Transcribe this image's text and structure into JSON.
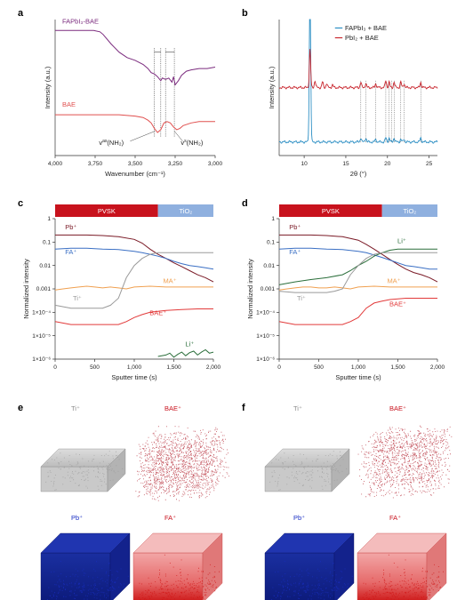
{
  "panel_letters": [
    "a",
    "b",
    "c",
    "d",
    "e",
    "f"
  ],
  "chart_data": [
    {
      "panel": "a",
      "type": "line",
      "xlabel": "Wavenumber (cm⁻¹)",
      "ylabel": "Intensity (a.u.)",
      "xlim": [
        4000,
        3000
      ],
      "xticks": [
        "4,000",
        "3,750",
        "3,500",
        "3,250",
        "3,000"
      ],
      "xtick_values": [
        4000,
        3750,
        3500,
        3250,
        3000
      ],
      "series": [
        {
          "name": "FAPbI₃-BAE",
          "color": "#7b2b7e",
          "x": [
            4000,
            3950,
            3900,
            3850,
            3800,
            3760,
            3720,
            3700,
            3650,
            3600,
            3550,
            3500,
            3450,
            3420,
            3400,
            3380,
            3360,
            3340,
            3330,
            3310,
            3290,
            3270,
            3260,
            3250,
            3230,
            3210,
            3180,
            3150,
            3100,
            3050,
            3000
          ],
          "y": [
            0.92,
            0.92,
            0.92,
            0.92,
            0.92,
            0.92,
            0.91,
            0.89,
            0.82,
            0.76,
            0.72,
            0.7,
            0.67,
            0.64,
            0.61,
            0.6,
            0.58,
            0.55,
            0.57,
            0.56,
            0.57,
            0.54,
            0.58,
            0.52,
            0.55,
            0.59,
            0.62,
            0.63,
            0.64,
            0.64,
            0.65
          ]
        },
        {
          "name": "BAE",
          "color": "#e0504f",
          "x": [
            4000,
            3900,
            3800,
            3700,
            3600,
            3500,
            3450,
            3420,
            3400,
            3380,
            3360,
            3340,
            3320,
            3300,
            3280,
            3260,
            3240,
            3220,
            3200,
            3150,
            3100,
            3050,
            3000
          ],
          "y": [
            0.3,
            0.3,
            0.3,
            0.3,
            0.3,
            0.29,
            0.28,
            0.26,
            0.24,
            0.2,
            0.17,
            0.19,
            0.24,
            0.25,
            0.24,
            0.21,
            0.19,
            0.2,
            0.22,
            0.24,
            0.25,
            0.25,
            0.25
          ]
        }
      ],
      "annotations": [
        {
          "text": "v",
          "sup": "as",
          "rest": "(NH₂)",
          "x": 3420
        },
        {
          "text": "v",
          "sup": "s",
          "rest": "(NH₂)",
          "x": 3270
        }
      ],
      "dotted_lines": [
        3380,
        3340,
        3310,
        3255
      ]
    },
    {
      "panel": "b",
      "type": "line",
      "xlabel": "2θ (°)",
      "ylabel": "Intensity (a.u.)",
      "xlim": [
        7,
        26
      ],
      "xticks": [
        "10",
        "15",
        "20",
        "25"
      ],
      "xtick_values": [
        10,
        15,
        20,
        25
      ],
      "series": [
        {
          "name": "FAPbI₃ + BAE",
          "color": "#2d8fc4",
          "baseline": 0.1,
          "peaks": [
            [
              10.7,
              1.2
            ],
            [
              16.8,
              0.03
            ],
            [
              17.4,
              0.03
            ],
            [
              18.6,
              0.02
            ],
            [
              19.8,
              0.03
            ],
            [
              20.2,
              0.03
            ],
            [
              20.8,
              0.03
            ],
            [
              21.6,
              0.02
            ],
            [
              22.0,
              0.02
            ],
            [
              24.0,
              0.03
            ]
          ]
        },
        {
          "name": "PbI₂ + BAE",
          "color": "#c8262e",
          "baseline": 0.5,
          "peaks": [
            [
              10.7,
              0.28
            ],
            [
              11.3,
              0.05
            ],
            [
              12.2,
              0.04
            ],
            [
              12.7,
              0.03
            ],
            [
              13.4,
              0.02
            ],
            [
              16.8,
              0.04
            ],
            [
              17.4,
              0.03
            ],
            [
              18.6,
              0.03
            ],
            [
              19.8,
              0.05
            ],
            [
              20.2,
              0.04
            ],
            [
              20.8,
              0.04
            ],
            [
              21.6,
              0.04
            ],
            [
              22.0,
              0.03
            ],
            [
              24.0,
              0.04
            ]
          ]
        }
      ],
      "dotted_lines": [
        16.8,
        17.4,
        18.6,
        19.8,
        20.2,
        20.5,
        20.8,
        21.6,
        22.0,
        24.0
      ]
    },
    {
      "panel": "c",
      "type": "line",
      "xlabel": "Sputter time (s)",
      "ylabel": "Normalized intensity",
      "yscale": "log",
      "ylim": [
        1e-06,
        1
      ],
      "xlim": [
        0,
        2000
      ],
      "xticks": [
        "0",
        "500",
        "1,000",
        "1,500",
        "2,000"
      ],
      "xtick_values": [
        0,
        500,
        1000,
        1500,
        2000
      ],
      "yticks": [
        "1",
        "0.1",
        "0.01",
        "0.001",
        "1×10⁻⁴",
        "1×10⁻⁵",
        "1×10⁻⁶"
      ],
      "bar": [
        {
          "label": "PVSK",
          "from": 0,
          "to": 1300,
          "color": "#c8121d"
        },
        {
          "label": "TiO₂",
          "from": 1300,
          "to": 2000,
          "color": "#8fb0df"
        }
      ],
      "series": [
        {
          "name": "Pb⁺",
          "color": "#7a1a26",
          "x": [
            0,
            200,
            400,
            600,
            800,
            1000,
            1100,
            1200,
            1300,
            1400,
            1500,
            1600,
            1700,
            1800,
            1900,
            2000
          ],
          "y": [
            0.2,
            0.2,
            0.2,
            0.19,
            0.17,
            0.13,
            0.09,
            0.05,
            0.03,
            0.02,
            0.013,
            0.009,
            0.006,
            0.004,
            0.003,
            0.002
          ]
        },
        {
          "name": "FA⁺",
          "color": "#3a6fc4",
          "x": [
            0,
            200,
            400,
            600,
            800,
            1000,
            1100,
            1200,
            1300,
            1400,
            1500,
            1600,
            1700,
            1800,
            1900,
            2000
          ],
          "y": [
            0.05,
            0.055,
            0.055,
            0.05,
            0.048,
            0.04,
            0.035,
            0.03,
            0.025,
            0.02,
            0.015,
            0.012,
            0.01,
            0.009,
            0.008,
            0.007
          ]
        },
        {
          "name": "MA⁺",
          "color": "#f0a050",
          "x": [
            0,
            100,
            200,
            300,
            400,
            500,
            600,
            700,
            800,
            900,
            1000,
            1200,
            1400,
            1600,
            1800,
            2000
          ],
          "y": [
            0.0009,
            0.001,
            0.0011,
            0.0012,
            0.0013,
            0.0012,
            0.0011,
            0.0012,
            0.0011,
            0.001,
            0.0012,
            0.0013,
            0.0012,
            0.0012,
            0.0012,
            0.0012
          ]
        },
        {
          "name": "Ti⁺",
          "color": "#9a9a9a",
          "x": [
            0,
            200,
            400,
            600,
            700,
            800,
            900,
            1000,
            1100,
            1200,
            1300,
            1400,
            1600,
            1800,
            2000
          ],
          "y": [
            0.0002,
            0.00015,
            0.00015,
            0.00015,
            0.0002,
            0.0004,
            0.003,
            0.01,
            0.02,
            0.03,
            0.035,
            0.035,
            0.035,
            0.035,
            0.035
          ]
        },
        {
          "name": "BAE⁺",
          "color": "#e23a3a",
          "x": [
            0,
            200,
            400,
            600,
            800,
            900,
            1000,
            1100,
            1200,
            1300,
            1400,
            1600,
            1800,
            2000
          ],
          "y": [
            4e-05,
            3e-05,
            3e-05,
            3e-05,
            3e-05,
            4e-05,
            6e-05,
            8e-05,
            0.0001,
            0.00011,
            0.00012,
            0.00013,
            0.00014,
            0.00014
          ]
        },
        {
          "name": "Li⁺",
          "color": "#2a6e3a",
          "x": [
            1300,
            1400,
            1450,
            1500,
            1550,
            1600,
            1650,
            1700,
            1750,
            1800,
            1850,
            1900,
            1950,
            2000
          ],
          "y": [
            1.3e-06,
            1.5e-06,
            1.8e-06,
            1.2e-06,
            1.6e-06,
            2e-06,
            1.4e-06,
            1.9e-06,
            2.2e-06,
            1.5e-06,
            2e-06,
            2.5e-06,
            1.8e-06,
            2e-06
          ]
        }
      ]
    },
    {
      "panel": "d",
      "type": "line",
      "xlabel": "Sputter time (s)",
      "ylabel": "Normalized intensity",
      "yscale": "log",
      "ylim": [
        1e-06,
        1
      ],
      "xlim": [
        0,
        2000
      ],
      "xticks": [
        "0",
        "500",
        "1,000",
        "1,500",
        "2,000"
      ],
      "xtick_values": [
        0,
        500,
        1000,
        1500,
        2000
      ],
      "yticks": [
        "1",
        "0.1",
        "0.01",
        "0.001",
        "1×10⁻⁴",
        "1×10⁻⁵",
        "1×10⁻⁶"
      ],
      "bar": [
        {
          "label": "PVSK",
          "from": 0,
          "to": 1300,
          "color": "#c8121d"
        },
        {
          "label": "TiO₂",
          "from": 1300,
          "to": 2000,
          "color": "#8fb0df"
        }
      ],
      "series": [
        {
          "name": "Pb⁺",
          "color": "#7a1a26",
          "x": [
            0,
            200,
            400,
            600,
            800,
            1000,
            1100,
            1200,
            1300,
            1400,
            1500,
            1600,
            1700,
            1800,
            1900,
            2000
          ],
          "y": [
            0.2,
            0.2,
            0.2,
            0.19,
            0.17,
            0.12,
            0.08,
            0.05,
            0.03,
            0.018,
            0.011,
            0.007,
            0.005,
            0.004,
            0.003,
            0.002
          ]
        },
        {
          "name": "FA⁺",
          "color": "#3a6fc4",
          "x": [
            0,
            200,
            400,
            600,
            800,
            1000,
            1100,
            1200,
            1300,
            1400,
            1500,
            1600,
            1700,
            1800,
            1900,
            2000
          ],
          "y": [
            0.05,
            0.055,
            0.055,
            0.05,
            0.048,
            0.04,
            0.035,
            0.028,
            0.022,
            0.017,
            0.013,
            0.01,
            0.009,
            0.008,
            0.007,
            0.007
          ]
        },
        {
          "name": "Li⁺",
          "color": "#2a6e3a",
          "x": [
            0,
            200,
            400,
            600,
            800,
            900,
            1000,
            1100,
            1200,
            1300,
            1400,
            1500,
            1600,
            1800,
            2000
          ],
          "y": [
            0.0015,
            0.002,
            0.0025,
            0.003,
            0.004,
            0.006,
            0.01,
            0.015,
            0.025,
            0.035,
            0.045,
            0.05,
            0.05,
            0.05,
            0.05
          ]
        },
        {
          "name": "MA⁺",
          "color": "#f0a050",
          "x": [
            0,
            100,
            200,
            300,
            400,
            500,
            600,
            700,
            800,
            900,
            1000,
            1200,
            1400,
            1600,
            1800,
            2000
          ],
          "y": [
            0.0009,
            0.001,
            0.0011,
            0.0012,
            0.0012,
            0.0011,
            0.0011,
            0.0012,
            0.0011,
            0.001,
            0.0012,
            0.0013,
            0.0012,
            0.0012,
            0.0012,
            0.0012
          ]
        },
        {
          "name": "Ti⁺",
          "color": "#9a9a9a",
          "x": [
            0,
            200,
            400,
            600,
            700,
            800,
            900,
            1000,
            1100,
            1200,
            1300,
            1400,
            1600,
            1800,
            2000
          ],
          "y": [
            0.0008,
            0.0007,
            0.0007,
            0.0007,
            0.0008,
            0.001,
            0.004,
            0.01,
            0.02,
            0.03,
            0.035,
            0.035,
            0.035,
            0.035,
            0.035
          ]
        },
        {
          "name": "BAE⁺",
          "color": "#e23a3a",
          "x": [
            0,
            200,
            400,
            600,
            800,
            900,
            1000,
            1100,
            1200,
            1300,
            1400,
            1600,
            1800,
            2000
          ],
          "y": [
            4e-05,
            3e-05,
            3e-05,
            3e-05,
            3e-05,
            4e-05,
            6e-05,
            0.00015,
            0.00025,
            0.0003,
            0.00035,
            0.0004,
            0.0004,
            0.0004
          ]
        }
      ]
    }
  ],
  "panel_e": {
    "labels": [
      {
        "text": "Ti⁺",
        "color": "#8a8a8a"
      },
      {
        "text": "BAE⁺",
        "color": "#c8121d"
      },
      {
        "text": "Pb⁺",
        "color": "#1a2fc4"
      },
      {
        "text": "FA⁺",
        "color": "#c8121d"
      }
    ]
  },
  "panel_f": {
    "labels": [
      {
        "text": "Ti⁺",
        "color": "#8a8a8a"
      },
      {
        "text": "BAE⁺",
        "color": "#c8121d"
      },
      {
        "text": "Pb⁺",
        "color": "#1a2fc4"
      },
      {
        "text": "FA⁺",
        "color": "#c8121d"
      }
    ]
  }
}
